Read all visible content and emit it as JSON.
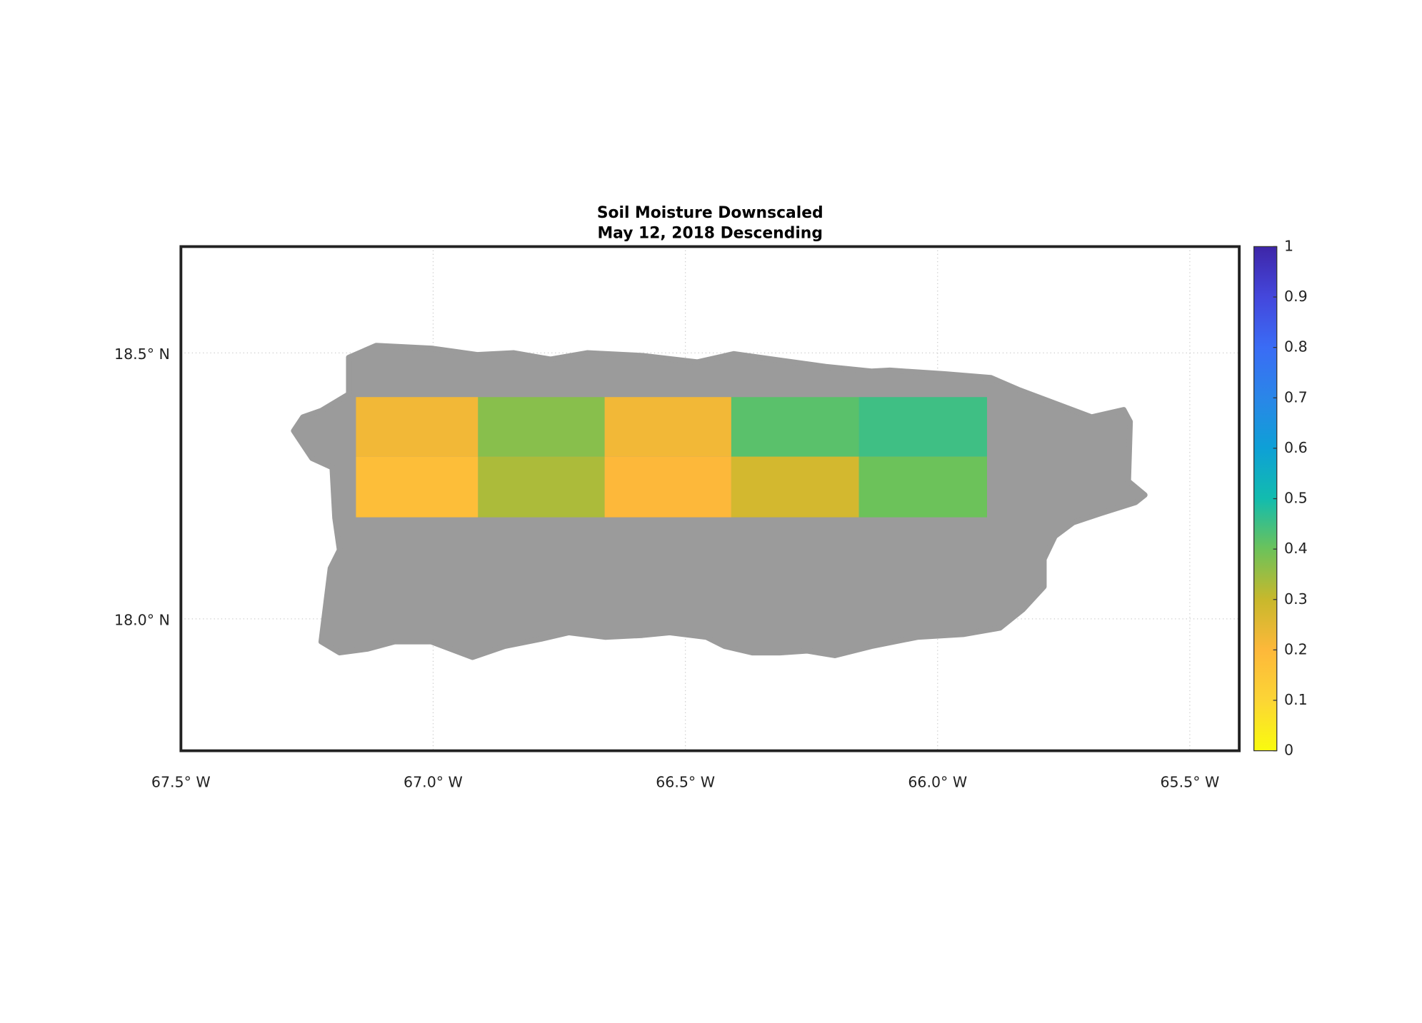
{
  "chart_data": {
    "type": "map",
    "title": [
      "Soil Moisture Downscaled",
      "May 12, 2018 Descending"
    ],
    "xlim": [
      -67.5,
      -65.402
    ],
    "ylim": [
      17.752,
      18.7
    ],
    "xticks": [
      {
        "value": -67.5,
        "label": "67.5° W"
      },
      {
        "value": -67.0,
        "label": "67.0° W"
      },
      {
        "value": -66.5,
        "label": "66.5° W"
      },
      {
        "value": -66.0,
        "label": "66.0° W"
      },
      {
        "value": -65.5,
        "label": "65.5° W"
      }
    ],
    "yticks": [
      {
        "value": 18.5,
        "label": "18.5° N"
      },
      {
        "value": 18.0,
        "label": "18.0° N"
      }
    ],
    "grid": true,
    "grid_cells": {
      "lon_edges": [
        -67.153,
        -66.911,
        -66.66,
        -66.409,
        -66.156,
        -65.902
      ],
      "lat_edges": [
        18.417,
        18.305,
        18.191
      ],
      "values": [
        [
          0.22,
          0.37,
          0.22,
          0.42,
          0.45
        ],
        [
          0.18,
          0.33,
          0.2,
          0.28,
          0.4
        ]
      ]
    },
    "colorbar": {
      "lim": [
        0,
        1
      ],
      "ticks": [
        0,
        0.1,
        0.2,
        0.3,
        0.4,
        0.5,
        0.6,
        0.7,
        0.8,
        0.9,
        1
      ],
      "colormap": [
        "#f9fb0e",
        "#fcd535",
        "#fdb83a",
        "#c8b82c",
        "#6cc25a",
        "#12bcae",
        "#0ea0d6",
        "#2a86e8",
        "#3a6cf5",
        "#4447dc",
        "#3e26a8"
      ]
    }
  }
}
